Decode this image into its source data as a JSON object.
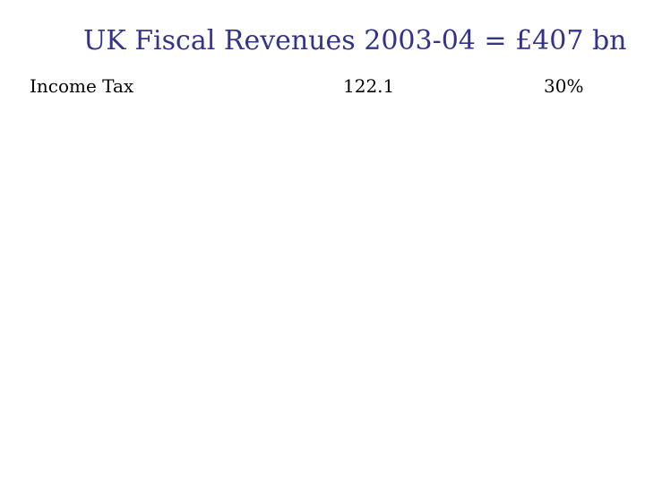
{
  "slide": {
    "title": "UK Fiscal Revenues 2003-04 = £407 bn",
    "title_color": "#33338a"
  },
  "table": {
    "rows": [
      {
        "label": "Income Tax",
        "value": "122.1",
        "share": "30%"
      }
    ]
  }
}
